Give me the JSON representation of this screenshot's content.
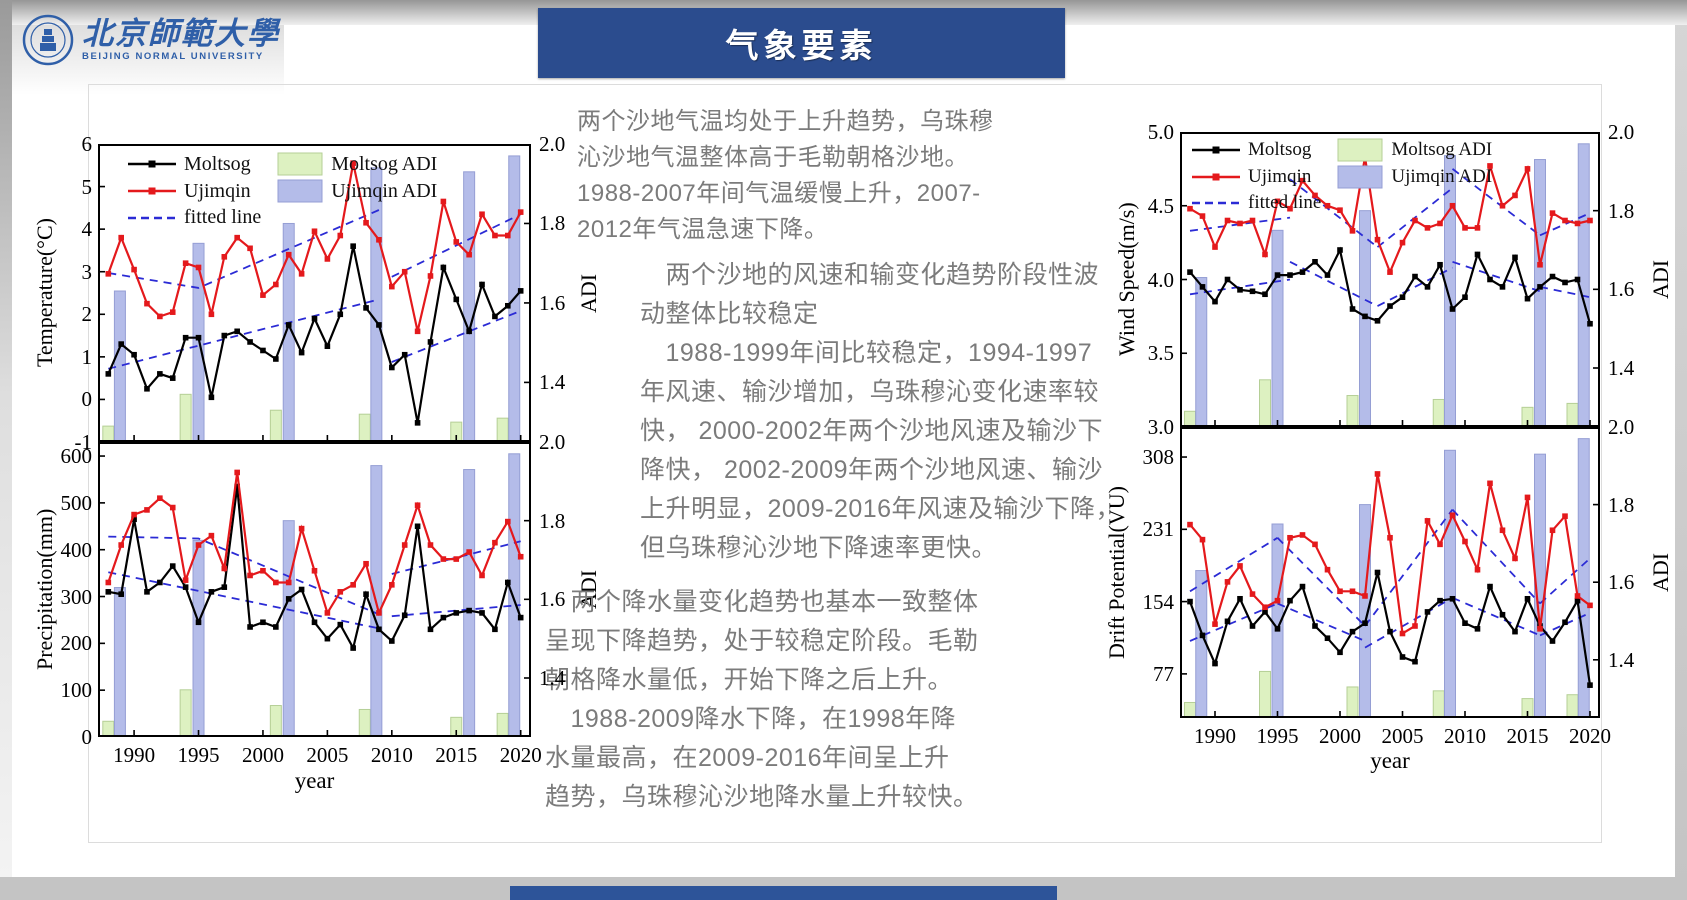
{
  "header": {
    "title": "气象要素"
  },
  "logo": {
    "cn": "北京師範大學",
    "en": "BEIJING NORMAL UNIVERSITY"
  },
  "content": {
    "paragraphs": [
      "两个沙地气温均处于上升趋势，乌珠穆\n沁沙地气温整体高于毛勒朝格沙地。\n1988-2007年间气温缓慢上升，2007-\n2012年气温急速下降。",
      "　两个沙地的风速和输变化趋势阶段性波\n动整体比较稳定\n　1988-1999年间比较稳定，1994-1997\n年风速、输沙增加，乌珠穆沁变化速率较\n快， 2000-2002年两个沙地风速及输沙下\n降快， 2002-2009年两个沙地风速、输沙\n上升明显，2009-2016年风速及输沙下降，\n但乌珠穆沁沙地下降速率更快。",
      "　两个降水量变化趋势也基本一致整体\n呈现下降趋势，处于较稳定阶段。毛勒\n朝格降水量低，开始下降之后上升。\n　1988-2009降水下降，在1998年降\n水量最高，在2009-2016年间呈上升\n趋势，乌珠穆沁沙地降水量上升较快。"
    ]
  },
  "colors": {
    "moltsog": "#000000",
    "ujimqin": "#e4191c",
    "fitted": "#2b2bd5",
    "moltsog_adi": "#ddf1c1",
    "ujimqin_adi": "#b4bce9",
    "adi_border_green": "#b5cf96",
    "adi_border_blue": "#959ed4",
    "title_bar": "#2b4c8e",
    "bottom_bar": "#2d5499",
    "text_gray": "#7b7b7b",
    "logo_blue": "#2f5fa8"
  },
  "chart_data": {
    "type": "line",
    "grid": false,
    "xlabel": "year",
    "x": [
      1988,
      1989,
      1990,
      1991,
      1992,
      1993,
      1994,
      1995,
      1996,
      1997,
      1998,
      1999,
      2000,
      2001,
      2002,
      2003,
      2004,
      2005,
      2006,
      2007,
      2008,
      2009,
      2010,
      2011,
      2012,
      2013,
      2014,
      2015,
      2016,
      2017,
      2018,
      2019,
      2020
    ],
    "xticks": [
      1990,
      1995,
      2000,
      2005,
      2010,
      2015,
      2020
    ],
    "xlim": [
      1987.2,
      2020.8
    ],
    "legend": {
      "position": "top-left",
      "moltsog": "Moltsog",
      "ujimqin": "Ujimqin",
      "fitted": "fitted line",
      "moltsog_adi": "Moltsog ADI",
      "ujimqin_adi": "Ujimqin ADI"
    },
    "adi_axis": {
      "label": "ADI",
      "ticks": [
        "2.0",
        "1.8",
        "1.6",
        "1.4"
      ],
      "tick_values": [
        2.0,
        1.8,
        1.6,
        1.4
      ],
      "lim": [
        1.25,
        2.0
      ]
    },
    "adi_bars": {
      "moltsog": {
        "years": [
          1988,
          1994,
          2001,
          2007.9,
          2015,
          2018.6
        ],
        "values": [
          1.29,
          1.37,
          1.33,
          1.32,
          1.3,
          1.31
        ]
      },
      "ujimqin": {
        "years": [
          1988.9,
          1995,
          2002,
          2008.8,
          2016,
          2019.5
        ],
        "values": [
          1.63,
          1.75,
          1.8,
          1.94,
          1.93,
          1.97
        ]
      }
    },
    "panels": [
      {
        "id": "temperature",
        "ylabel": "Temperature(°C)",
        "ylim": [
          -1,
          6
        ],
        "ytick_values": [
          6,
          5,
          4,
          3,
          2,
          1,
          0,
          -1
        ],
        "ytick_labels": [
          "6",
          "5",
          "4",
          "3",
          "2",
          "1",
          "0",
          "-1"
        ],
        "series": {
          "moltsog": [
            0.6,
            1.3,
            1.05,
            0.25,
            0.6,
            0.5,
            1.45,
            1.45,
            0.05,
            1.5,
            1.6,
            1.35,
            1.15,
            0.95,
            1.75,
            1.1,
            1.9,
            1.25,
            2.0,
            3.6,
            2.15,
            1.75,
            0.75,
            1.05,
            -0.55,
            1.35,
            3.1,
            2.35,
            1.6,
            2.7,
            1.95,
            2.2,
            2.55
          ],
          "ujimqin": [
            2.95,
            3.8,
            3.05,
            2.25,
            1.95,
            2.05,
            3.2,
            3.1,
            2.0,
            3.35,
            3.8,
            3.55,
            2.45,
            2.7,
            3.4,
            2.95,
            3.95,
            3.3,
            3.85,
            5.55,
            4.15,
            3.75,
            2.65,
            3.0,
            1.6,
            2.9,
            4.65,
            3.7,
            3.4,
            4.35,
            3.85,
            3.85,
            4.4
          ]
        },
        "fitted": {
          "moltsog": [
            [
              [
                1988,
                0.72
              ],
              [
                2009,
                2.35
              ]
            ],
            [
              [
                2010,
                0.88
              ],
              [
                2020,
                2.08
              ]
            ]
          ],
          "ujimqin": [
            [
              [
                1988,
                2.97
              ],
              [
                1995,
                2.62
              ],
              [
                2009,
                4.45
              ]
            ],
            [
              [
                2010,
                2.88
              ],
              [
                2020,
                4.35
              ]
            ]
          ]
        }
      },
      {
        "id": "precipitation",
        "ylabel": "Precipitation(mm)",
        "ylim": [
          0,
          630
        ],
        "ytick_values": [
          600,
          500,
          400,
          300,
          200,
          100,
          0
        ],
        "ytick_labels": [
          "600",
          "500",
          "400",
          "300",
          "200",
          "100",
          "0"
        ],
        "series": {
          "moltsog": [
            310,
            305,
            465,
            310,
            330,
            365,
            320,
            245,
            310,
            320,
            535,
            235,
            245,
            235,
            295,
            315,
            245,
            210,
            240,
            190,
            305,
            230,
            205,
            260,
            450,
            230,
            255,
            265,
            270,
            265,
            230,
            330,
            255
          ],
          "ujimqin": [
            330,
            410,
            475,
            485,
            510,
            490,
            335,
            410,
            430,
            360,
            565,
            345,
            355,
            330,
            330,
            445,
            355,
            265,
            310,
            325,
            370,
            265,
            325,
            410,
            495,
            410,
            380,
            380,
            395,
            345,
            415,
            460,
            385
          ]
        },
        "fitted": {
          "moltsog": [
            [
              [
                1988,
                352
              ],
              [
                2009,
                232
              ]
            ],
            [
              [
                2010,
                258
              ],
              [
                2020,
                282
              ]
            ]
          ],
          "ujimqin": [
            [
              [
                1988,
                428
              ],
              [
                1995,
                424
              ],
              [
                2009,
                262
              ]
            ],
            [
              [
                2010,
                348
              ],
              [
                2020,
                418
              ]
            ]
          ]
        }
      },
      {
        "id": "wind-speed",
        "ylabel": "Wind Speed(m/s)",
        "ylim": [
          3,
          5
        ],
        "ytick_values": [
          5,
          4.5,
          4,
          3.5,
          3
        ],
        "ytick_labels": [
          "5.0",
          "4.5",
          "4.0",
          "3.5",
          "3.0"
        ],
        "series": {
          "moltsog": [
            4.05,
            3.95,
            3.85,
            4.0,
            3.93,
            3.92,
            3.9,
            4.03,
            4.03,
            4.05,
            4.12,
            4.03,
            4.2,
            3.8,
            3.75,
            3.72,
            3.82,
            3.88,
            4.02,
            3.95,
            4.1,
            3.8,
            3.88,
            4.17,
            4.0,
            3.95,
            4.15,
            3.87,
            3.95,
            4.02,
            3.98,
            4.0,
            3.7
          ],
          "ujimqin": [
            4.48,
            4.43,
            4.22,
            4.4,
            4.38,
            4.4,
            4.17,
            4.53,
            4.48,
            4.67,
            4.57,
            4.5,
            4.47,
            4.33,
            4.83,
            4.27,
            4.05,
            4.25,
            4.4,
            4.35,
            4.38,
            4.5,
            4.35,
            4.35,
            4.77,
            4.5,
            4.57,
            4.75,
            4.1,
            4.45,
            4.4,
            4.38,
            4.4
          ]
        },
        "fitted": {
          "moltsog": [
            [
              [
                1988,
                3.9
              ],
              [
                1996,
                4.0
              ]
            ],
            [
              [
                1996,
                4.12
              ],
              [
                2003,
                3.82
              ]
            ],
            [
              [
                2003,
                3.82
              ],
              [
                2009,
                4.08
              ]
            ],
            [
              [
                2009,
                4.12
              ],
              [
                2016,
                3.92
              ]
            ],
            [
              [
                2016,
                3.95
              ],
              [
                2020,
                3.88
              ]
            ]
          ],
          "ujimqin": [
            [
              [
                1988,
                4.33
              ],
              [
                1996,
                4.42
              ]
            ],
            [
              [
                1996,
                4.68
              ],
              [
                2003,
                4.22
              ]
            ],
            [
              [
                2003,
                4.22
              ],
              [
                2009,
                4.62
              ]
            ],
            [
              [
                2009,
                4.75
              ],
              [
                2016,
                4.3
              ]
            ],
            [
              [
                2016,
                4.3
              ],
              [
                2020,
                4.45
              ]
            ]
          ]
        }
      },
      {
        "id": "drift-potential",
        "ylabel": "Drift Potential(VU)",
        "ylim": [
          30,
          340
        ],
        "ytick_values": [
          308,
          231,
          154,
          77
        ],
        "ytick_labels": [
          "308",
          "231",
          "154",
          "77"
        ],
        "series": {
          "moltsog": [
            154,
            118,
            88,
            133,
            157,
            128,
            143,
            125,
            155,
            170,
            128,
            115,
            100,
            122,
            131,
            185,
            122,
            95,
            90,
            143,
            155,
            157,
            131,
            125,
            170,
            140,
            122,
            157,
            128,
            112,
            132,
            155,
            65
          ],
          "ujimqin": [
            236,
            220,
            130,
            175,
            192,
            162,
            148,
            155,
            222,
            225,
            215,
            188,
            165,
            165,
            160,
            290,
            222,
            120,
            128,
            240,
            215,
            246,
            218,
            188,
            280,
            230,
            200,
            265,
            125,
            230,
            245,
            160,
            150
          ]
        },
        "fitted": {
          "moltsog": [
            [
              [
                1988,
                112
              ],
              [
                1995,
                152
              ]
            ],
            [
              [
                1995,
                152
              ],
              [
                2002,
                112
              ]
            ],
            [
              [
                2002,
                105
              ],
              [
                2009,
                158
              ]
            ],
            [
              [
                2009,
                158
              ],
              [
                2016,
                118
              ]
            ],
            [
              [
                2016,
                118
              ],
              [
                2020,
                142
              ]
            ]
          ],
          "ujimqin": [
            [
              [
                1988,
                165
              ],
              [
                1995,
                222
              ]
            ],
            [
              [
                1995,
                222
              ],
              [
                2002,
                128
              ]
            ],
            [
              [
                2002,
                128
              ],
              [
                2009,
                252
              ]
            ],
            [
              [
                2009,
                252
              ],
              [
                2016,
                152
              ]
            ],
            [
              [
                2016,
                152
              ],
              [
                2020,
                200
              ]
            ]
          ]
        }
      }
    ]
  }
}
